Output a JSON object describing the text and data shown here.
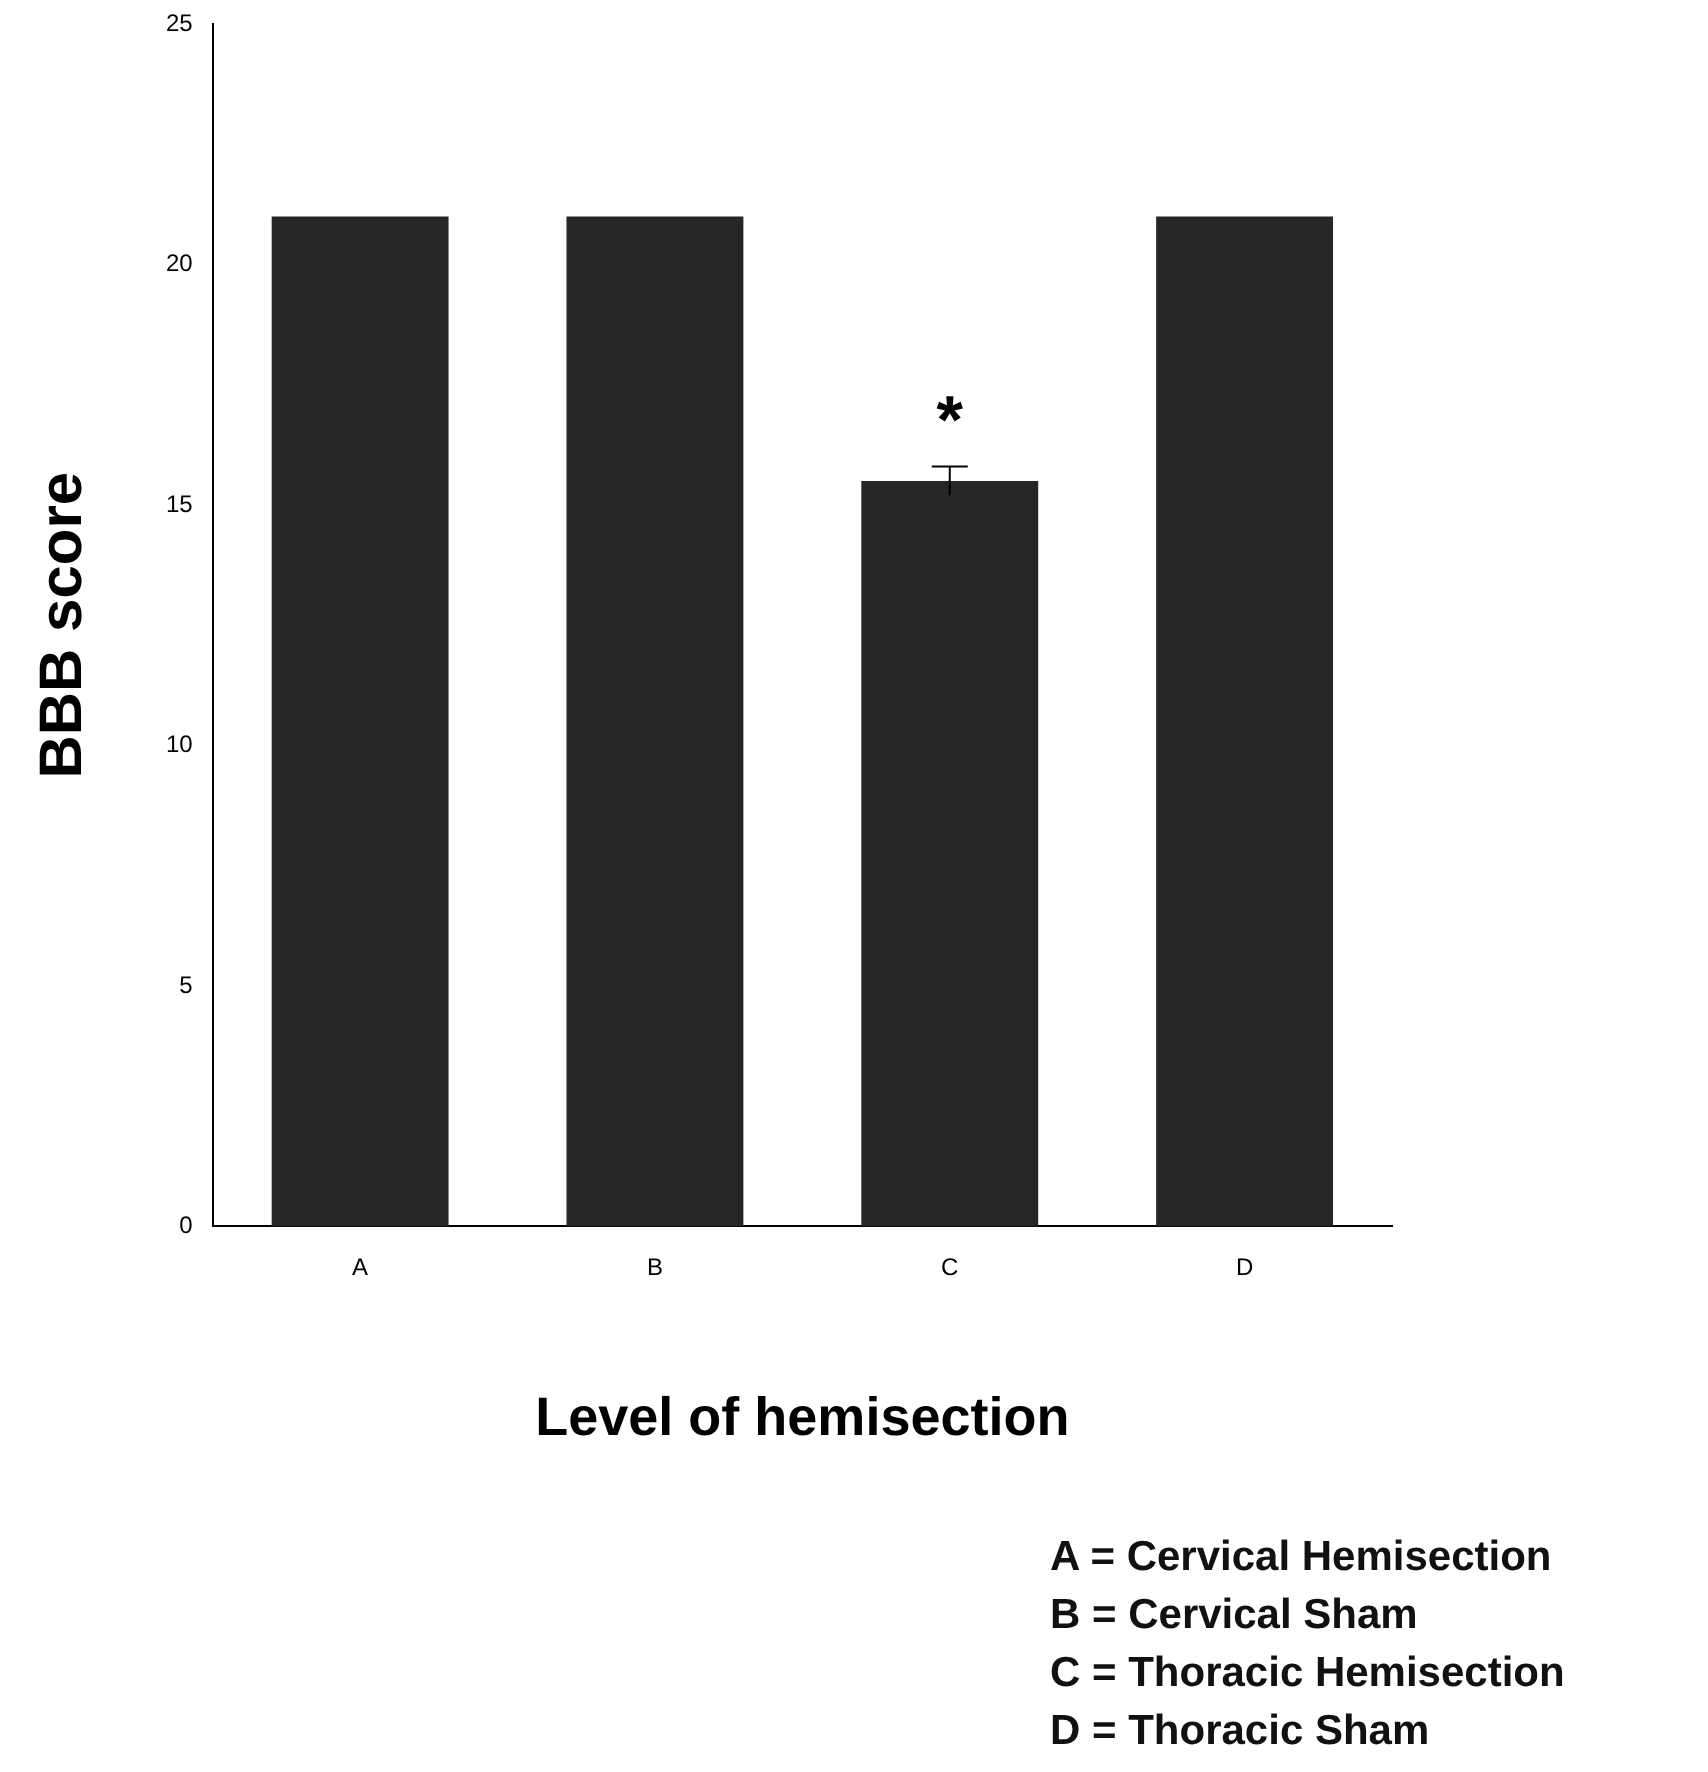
{
  "chart_data": {
    "type": "bar",
    "xlabel": "Level of hemisection",
    "ylabel": "BBB score",
    "categories": [
      "A",
      "B",
      "C",
      "D"
    ],
    "values": [
      21,
      21,
      15.5,
      21
    ],
    "errors": [
      null,
      null,
      0.3,
      null
    ],
    "color": "#262626",
    "ylim": [
      0,
      25
    ],
    "yticks": [
      0,
      5,
      10,
      15,
      20,
      25
    ],
    "grid": false,
    "legend": false,
    "value_labels": [
      null,
      null,
      "*",
      null
    ],
    "annotations": [
      "A = Cervical Hemisection",
      "B = Cervical Sham",
      "C = Thoracic Hemisection",
      "D = Thoracic Sham"
    ]
  }
}
